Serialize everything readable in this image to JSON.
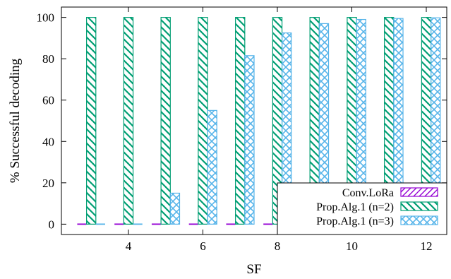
{
  "chart_data": {
    "type": "bar",
    "xlabel": "SF",
    "ylabel": "% Successful decoding",
    "x": [
      3,
      4,
      5,
      6,
      7,
      8,
      9,
      10,
      11,
      12
    ],
    "xlim": [
      2.2,
      12.55
    ],
    "ylim": [
      -5,
      105
    ],
    "xticks": [
      "4",
      "6",
      "8",
      "10",
      "12"
    ],
    "yticks": [
      "0",
      "20",
      "40",
      "60",
      "80",
      "100"
    ],
    "grid": false,
    "legend_position": "bottom-right",
    "series": [
      {
        "name": "Conv.LoRa",
        "color": "#9400d3",
        "pattern": "diagonal-up",
        "values": [
          0,
          0,
          0,
          0,
          0,
          0,
          0,
          0,
          0,
          0
        ]
      },
      {
        "name": "Prop.Alg.1 (n=2)",
        "color": "#009e73",
        "pattern": "diagonal-down",
        "values": [
          100,
          100,
          100,
          100,
          100,
          100,
          100,
          100,
          100,
          100
        ]
      },
      {
        "name": "Prop.Alg.1 (n=3)",
        "color": "#56b4e9",
        "pattern": "crosshatch",
        "values": [
          0,
          0,
          15,
          55,
          81.5,
          92.5,
          97,
          99,
          99.5,
          99.8
        ]
      }
    ]
  }
}
